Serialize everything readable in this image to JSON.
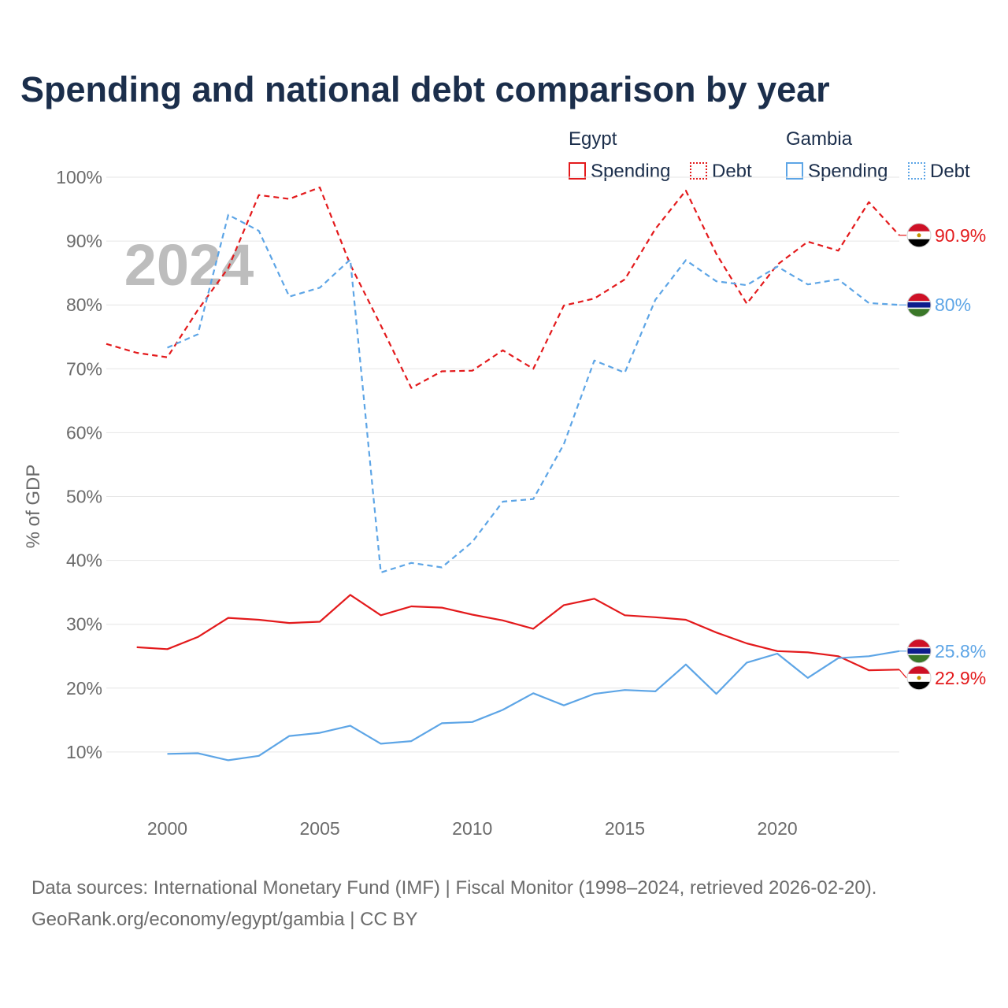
{
  "title": "Spending and national debt comparison by year",
  "year_watermark": "2024",
  "legend": {
    "groups": [
      {
        "country": "Egypt",
        "items": [
          {
            "label": "Spending",
            "style": "solid",
            "color": "#e31a1c"
          },
          {
            "label": "Debt",
            "style": "dotted",
            "color": "#e31a1c"
          }
        ]
      },
      {
        "country": "Gambia",
        "items": [
          {
            "label": "Spending",
            "style": "solid",
            "color": "#5da5e6"
          },
          {
            "label": "Debt",
            "style": "dotted",
            "color": "#5da5e6"
          }
        ]
      }
    ]
  },
  "chart_data": {
    "type": "line",
    "title": "Spending and national debt comparison by year",
    "xlabel": "",
    "ylabel": "% of GDP",
    "xlim": [
      1998,
      2024
    ],
    "ylim": [
      0,
      100
    ],
    "x_ticks": [
      2000,
      2005,
      2010,
      2015,
      2020
    ],
    "y_ticks": [
      10,
      20,
      30,
      40,
      50,
      60,
      70,
      80,
      90,
      100
    ],
    "y_tick_labels": [
      "10%",
      "20%",
      "30%",
      "40%",
      "50%",
      "60%",
      "70%",
      "80%",
      "90%",
      "100%"
    ],
    "grid": true,
    "series": [
      {
        "name": "Egypt Debt",
        "country": "Egypt",
        "metric": "Debt",
        "color": "#e31a1c",
        "dash": "dashed",
        "end_label": "90.9%",
        "points": [
          [
            1998,
            73.9
          ],
          [
            1999,
            72.5
          ],
          [
            2000,
            71.8
          ],
          [
            2001,
            79.2
          ],
          [
            2002,
            85.8
          ],
          [
            2003,
            97.2
          ],
          [
            2004,
            96.6
          ],
          [
            2005,
            98.4
          ],
          [
            2006,
            86.3
          ],
          [
            2007,
            76.8
          ],
          [
            2008,
            67.0
          ],
          [
            2009,
            69.6
          ],
          [
            2010,
            69.7
          ],
          [
            2011,
            72.9
          ],
          [
            2012,
            70.0
          ],
          [
            2013,
            79.9
          ],
          [
            2014,
            81.0
          ],
          [
            2015,
            84.0
          ],
          [
            2016,
            91.9
          ],
          [
            2017,
            97.9
          ],
          [
            2018,
            88.0
          ],
          [
            2019,
            80.2
          ],
          [
            2020,
            86.3
          ],
          [
            2021,
            89.9
          ],
          [
            2022,
            88.5
          ],
          [
            2023,
            96.1
          ],
          [
            2024,
            90.9
          ]
        ]
      },
      {
        "name": "Gambia Debt",
        "country": "Gambia",
        "metric": "Debt",
        "color": "#5da5e6",
        "dash": "dashed",
        "end_label": "80%",
        "points": [
          [
            2000,
            73.3
          ],
          [
            2001,
            75.4
          ],
          [
            2002,
            94.1
          ],
          [
            2003,
            91.6
          ],
          [
            2004,
            81.3
          ],
          [
            2005,
            82.7
          ],
          [
            2006,
            87.1
          ],
          [
            2007,
            38.1
          ],
          [
            2008,
            39.6
          ],
          [
            2009,
            38.9
          ],
          [
            2010,
            42.9
          ],
          [
            2011,
            49.2
          ],
          [
            2012,
            49.6
          ],
          [
            2013,
            58.2
          ],
          [
            2014,
            71.3
          ],
          [
            2015,
            69.4
          ],
          [
            2016,
            80.8
          ],
          [
            2017,
            87.0
          ],
          [
            2018,
            83.7
          ],
          [
            2019,
            83.1
          ],
          [
            2020,
            86.0
          ],
          [
            2021,
            83.2
          ],
          [
            2022,
            84.0
          ],
          [
            2023,
            80.3
          ],
          [
            2024,
            80.0
          ]
        ]
      },
      {
        "name": "Egypt Spending",
        "country": "Egypt",
        "metric": "Spending",
        "color": "#e31a1c",
        "dash": "solid",
        "end_label": "22.9%",
        "points": [
          [
            1999,
            26.4
          ],
          [
            2000,
            26.1
          ],
          [
            2001,
            28.0
          ],
          [
            2002,
            31.0
          ],
          [
            2003,
            30.7
          ],
          [
            2004,
            30.2
          ],
          [
            2005,
            30.4
          ],
          [
            2006,
            34.6
          ],
          [
            2007,
            31.4
          ],
          [
            2008,
            32.8
          ],
          [
            2009,
            32.6
          ],
          [
            2010,
            31.5
          ],
          [
            2011,
            30.6
          ],
          [
            2012,
            29.3
          ],
          [
            2013,
            33.0
          ],
          [
            2014,
            34.0
          ],
          [
            2015,
            31.4
          ],
          [
            2016,
            31.1
          ],
          [
            2017,
            30.7
          ],
          [
            2018,
            28.7
          ],
          [
            2019,
            27.0
          ],
          [
            2020,
            25.8
          ],
          [
            2021,
            25.6
          ],
          [
            2022,
            25.0
          ],
          [
            2023,
            22.8
          ],
          [
            2024,
            22.9
          ]
        ]
      },
      {
        "name": "Gambia Spending",
        "country": "Gambia",
        "metric": "Spending",
        "color": "#5da5e6",
        "dash": "solid",
        "end_label": "25.8%",
        "points": [
          [
            2000,
            9.7
          ],
          [
            2001,
            9.8
          ],
          [
            2002,
            8.7
          ],
          [
            2003,
            9.4
          ],
          [
            2004,
            12.5
          ],
          [
            2005,
            13.0
          ],
          [
            2006,
            14.1
          ],
          [
            2007,
            11.3
          ],
          [
            2008,
            11.7
          ],
          [
            2009,
            14.5
          ],
          [
            2010,
            14.7
          ],
          [
            2011,
            16.6
          ],
          [
            2012,
            19.2
          ],
          [
            2013,
            17.3
          ],
          [
            2014,
            19.1
          ],
          [
            2015,
            19.7
          ],
          [
            2016,
            19.5
          ],
          [
            2017,
            23.7
          ],
          [
            2018,
            19.1
          ],
          [
            2019,
            24.0
          ],
          [
            2020,
            25.4
          ],
          [
            2021,
            21.6
          ],
          [
            2022,
            24.7
          ],
          [
            2023,
            25.0
          ],
          [
            2024,
            25.8
          ]
        ]
      }
    ]
  },
  "source": {
    "line1": "Data sources: International Monetary Fund (IMF) | Fiscal Monitor (1998–2024, retrieved 2026-02-20).",
    "line2": "GeoRank.org/economy/egypt/gambia | CC BY"
  }
}
